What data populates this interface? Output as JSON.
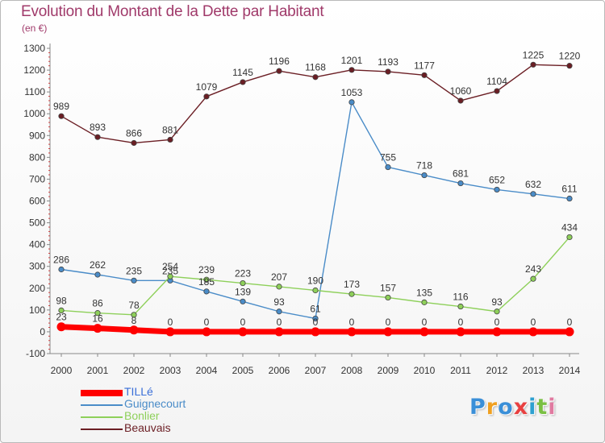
{
  "title": "Evolution du Montant de la Dette par Habitant",
  "unit_note": "(en €)",
  "brand": {
    "letters": [
      {
        "ch": "P",
        "color": "#3a8fd8"
      },
      {
        "ch": "r",
        "color": "#f0a020"
      },
      {
        "ch": "o",
        "color": "#3a8fd8"
      },
      {
        "ch": "x",
        "color": "#e84040"
      },
      {
        "ch": "i",
        "color": "#2ea0d0"
      },
      {
        "ch": "t",
        "color": "#7ac043"
      },
      {
        "ch": "i",
        "color": "#e07aa0"
      }
    ]
  },
  "chart_data": {
    "type": "line",
    "x": [
      "2000",
      "2001",
      "2002",
      "2003",
      "2004",
      "2005",
      "2006",
      "2007",
      "2008",
      "2009",
      "2010",
      "2011",
      "2012",
      "2013",
      "2014"
    ],
    "ylim": [
      -100,
      1300
    ],
    "yticks": [
      -100,
      0,
      100,
      200,
      300,
      400,
      500,
      600,
      700,
      800,
      900,
      1000,
      1100,
      1200,
      1300
    ],
    "grid": false,
    "legend_position": "bottom-left",
    "series": [
      {
        "name": "Beauvais",
        "color": "#6b1e24",
        "values": [
          989,
          893,
          866,
          881,
          1079,
          1145,
          1196,
          1168,
          1201,
          1193,
          1177,
          1060,
          1104,
          1225,
          1220
        ]
      },
      {
        "name": "Guignecourt",
        "color": "#4a8cc8",
        "values": [
          286,
          262,
          235,
          235,
          185,
          139,
          93,
          61,
          1053,
          755,
          718,
          681,
          652,
          632,
          611
        ]
      },
      {
        "name": "Bonlier",
        "color": "#8ed05a",
        "values": [
          98,
          86,
          78,
          254,
          239,
          223,
          207,
          190,
          173,
          157,
          135,
          116,
          93,
          243,
          434
        ]
      },
      {
        "name": "TILLé",
        "color": "#ff0000",
        "values": [
          23,
          16,
          8,
          0,
          0,
          0,
          0,
          0,
          0,
          0,
          0,
          0,
          0,
          0,
          0
        ]
      }
    ]
  }
}
